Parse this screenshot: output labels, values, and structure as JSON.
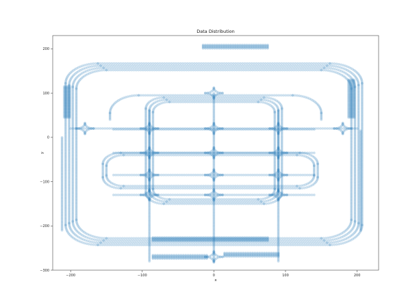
{
  "chart_data": {
    "type": "scatter",
    "title": "Data Distribution",
    "xlabel": "x",
    "ylabel": "y",
    "xlim": [
      -225,
      230
    ],
    "ylim": [
      -300,
      230
    ],
    "xticks": [
      -200,
      -100,
      0,
      100,
      200
    ],
    "yticks": [
      200,
      100,
      0,
      -100,
      -200,
      -300
    ],
    "xtick_labels": [
      "−200",
      "−100",
      "0",
      "100",
      "200"
    ],
    "ytick_labels": [
      "200",
      "100",
      "0",
      "−100",
      "−200",
      "−300"
    ],
    "grid": false,
    "legend": "none",
    "marker_color": "#1f77b4",
    "marker_alpha": 0.22,
    "series": [
      {
        "points_description_free": true,
        "loops": [
          {
            "cx": 0,
            "cy": -38,
            "hw": 207,
            "hh": 205,
            "r": 45
          },
          {
            "cx": 0,
            "cy": -38,
            "hw": 202,
            "hh": 200,
            "r": 44
          },
          {
            "cx": 0,
            "cy": -38,
            "hw": 197,
            "hh": 195,
            "r": 43
          },
          {
            "cx": 0,
            "cy": -38,
            "hw": 192,
            "hh": 190,
            "r": 42
          }
        ],
        "inner_rects": [
          {
            "x1": -95,
            "x2": 95,
            "y1": -150,
            "y2": 90,
            "r": 25
          },
          {
            "x1": -90,
            "x2": 90,
            "y1": -145,
            "y2": 85,
            "r": 24
          },
          {
            "x1": -85,
            "x2": 85,
            "y1": -140,
            "y2": 80,
            "r": 23
          },
          {
            "x1": -155,
            "x2": 145,
            "y1": -115,
            "y2": -35,
            "r": 25
          },
          {
            "x1": -150,
            "x2": 140,
            "y1": -110,
            "y2": -40,
            "r": 24
          }
        ],
        "arcs_top": [
          {
            "x1": -145,
            "x2": 150,
            "y": 95,
            "r": 40,
            "ybottom": 40
          }
        ],
        "horizontals": [
          {
            "x1": -200,
            "x2": 200,
            "y": 20
          },
          {
            "x1": -140,
            "x2": 140,
            "y": 18
          },
          {
            "x1": -140,
            "x2": 140,
            "y": -35
          },
          {
            "x1": -140,
            "x2": 140,
            "y": -85
          },
          {
            "x1": -140,
            "x2": 140,
            "y": -130
          }
        ],
        "verticals": [
          {
            "x": -90,
            "y1": -280,
            "y2": 60
          },
          {
            "x": 0,
            "y1": -280,
            "y2": 100
          },
          {
            "x": 90,
            "y1": -280,
            "y2": 60
          },
          {
            "x": -212,
            "y1": -210,
            "y2": 0
          },
          {
            "x": 205,
            "y1": -210,
            "y2": 15
          }
        ],
        "hubs": [
          {
            "x": -90,
            "y": 20
          },
          {
            "x": 0,
            "y": 20
          },
          {
            "x": 90,
            "y": 20
          },
          {
            "x": -90,
            "y": -35
          },
          {
            "x": 0,
            "y": -35
          },
          {
            "x": 90,
            "y": -35
          },
          {
            "x": -90,
            "y": -85
          },
          {
            "x": 0,
            "y": -85
          },
          {
            "x": 90,
            "y": -85
          },
          {
            "x": -90,
            "y": -130
          },
          {
            "x": 0,
            "y": -130
          },
          {
            "x": 90,
            "y": -130
          },
          {
            "x": -180,
            "y": 20
          },
          {
            "x": 180,
            "y": 20
          },
          {
            "x": 0,
            "y": 100
          },
          {
            "x": 0,
            "y": -270
          }
        ],
        "dense_segments": [
          {
            "x1": -15,
            "x2": 75,
            "y": 205
          },
          {
            "x1": -85,
            "x2": 75,
            "y": -230
          },
          {
            "x1": -85,
            "x2": -10,
            "y": -270
          },
          {
            "x1": 15,
            "x2": 90,
            "y": -265
          },
          {
            "x": -205,
            "y1": 45,
            "y2": 115
          },
          {
            "x": 192,
            "y1": 45,
            "y2": 130
          }
        ]
      }
    ]
  }
}
